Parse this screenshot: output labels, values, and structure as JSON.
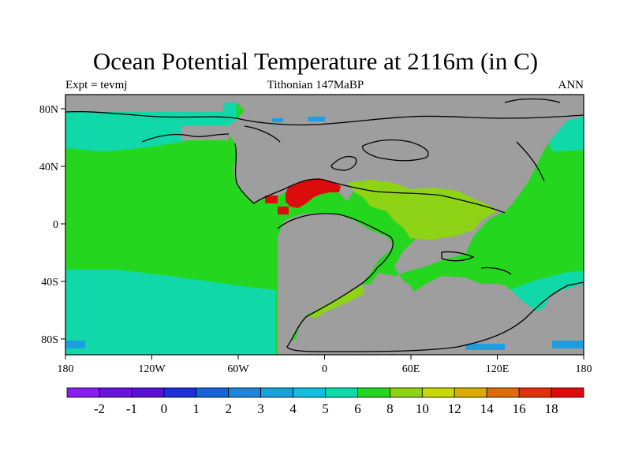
{
  "map": {
    "title": "Ocean Potential Temperature at 2116m (in C)",
    "subtitle_left": "Expt = tevmj",
    "subtitle_center": "Tithonian 147MaBP",
    "subtitle_right": "ANN",
    "lon_labels": [
      "180",
      "120W",
      "60W",
      "0",
      "60E",
      "120E",
      "180"
    ],
    "lat_labels": [
      "80N",
      "40N",
      "0",
      "40S",
      "80S"
    ],
    "land_color": "#9e9e9e"
  },
  "colorbar": {
    "colors": [
      "#8a1ef0",
      "#6b14d9",
      "#5a10d2",
      "#1c30d7",
      "#1565d8",
      "#1d86dc",
      "#17a2de",
      "#12bde0",
      "#10d8a8",
      "#24d71e",
      "#8ed316",
      "#c9d70a",
      "#dcab06",
      "#df6c08",
      "#de330a",
      "#dc0c0c"
    ],
    "labels": [
      "-2",
      "-1",
      "0",
      "1",
      "2",
      "3",
      "4",
      "5",
      "6",
      "8",
      "10",
      "12",
      "14",
      "16",
      "18"
    ]
  },
  "legend_colors": {
    "green_8": "#24d71e",
    "teal_6": "#10d8a8",
    "lime_10": "#8ed316",
    "red_18": "#dc0c0c",
    "blue_4": "#1d9ee0"
  }
}
